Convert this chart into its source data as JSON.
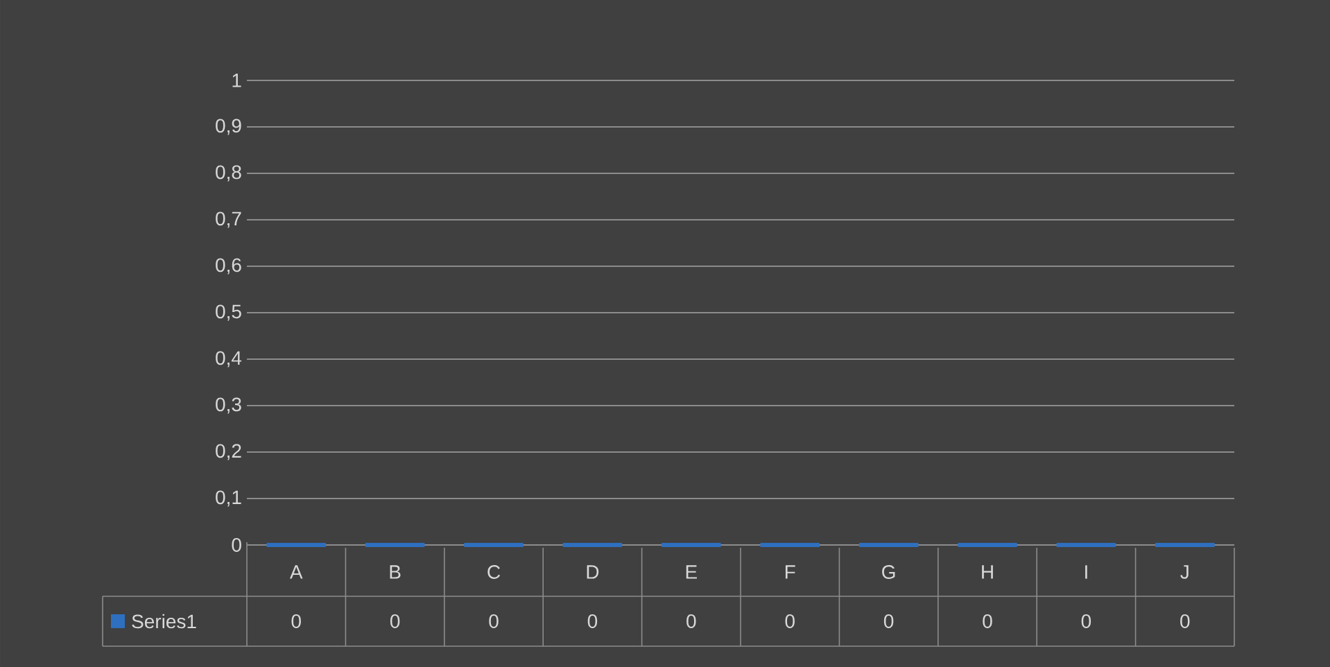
{
  "chart_data": {
    "type": "bar",
    "categories": [
      "A",
      "B",
      "C",
      "D",
      "E",
      "F",
      "G",
      "H",
      "I",
      "J"
    ],
    "series": [
      {
        "name": "Series1",
        "color": "#2e6fbf",
        "values": [
          0,
          0,
          0,
          0,
          0,
          0,
          0,
          0,
          0,
          0
        ]
      }
    ],
    "ylim": [
      0,
      1
    ],
    "yticks": [
      0,
      {
        "value": 0.1,
        "label": "0,1"
      },
      {
        "value": 0.2,
        "label": "0,2"
      },
      {
        "value": 0.3,
        "label": "0,3"
      },
      {
        "value": 0.4,
        "label": "0,4"
      },
      {
        "value": 0.5,
        "label": "0,5"
      },
      {
        "value": 0.6,
        "label": "0,6"
      },
      {
        "value": 0.7,
        "label": "0,7"
      },
      {
        "value": 0.8,
        "label": "0,8"
      },
      {
        "value": 0.9,
        "label": "0,9"
      },
      1
    ],
    "grid": "y",
    "data_labels": true
  }
}
